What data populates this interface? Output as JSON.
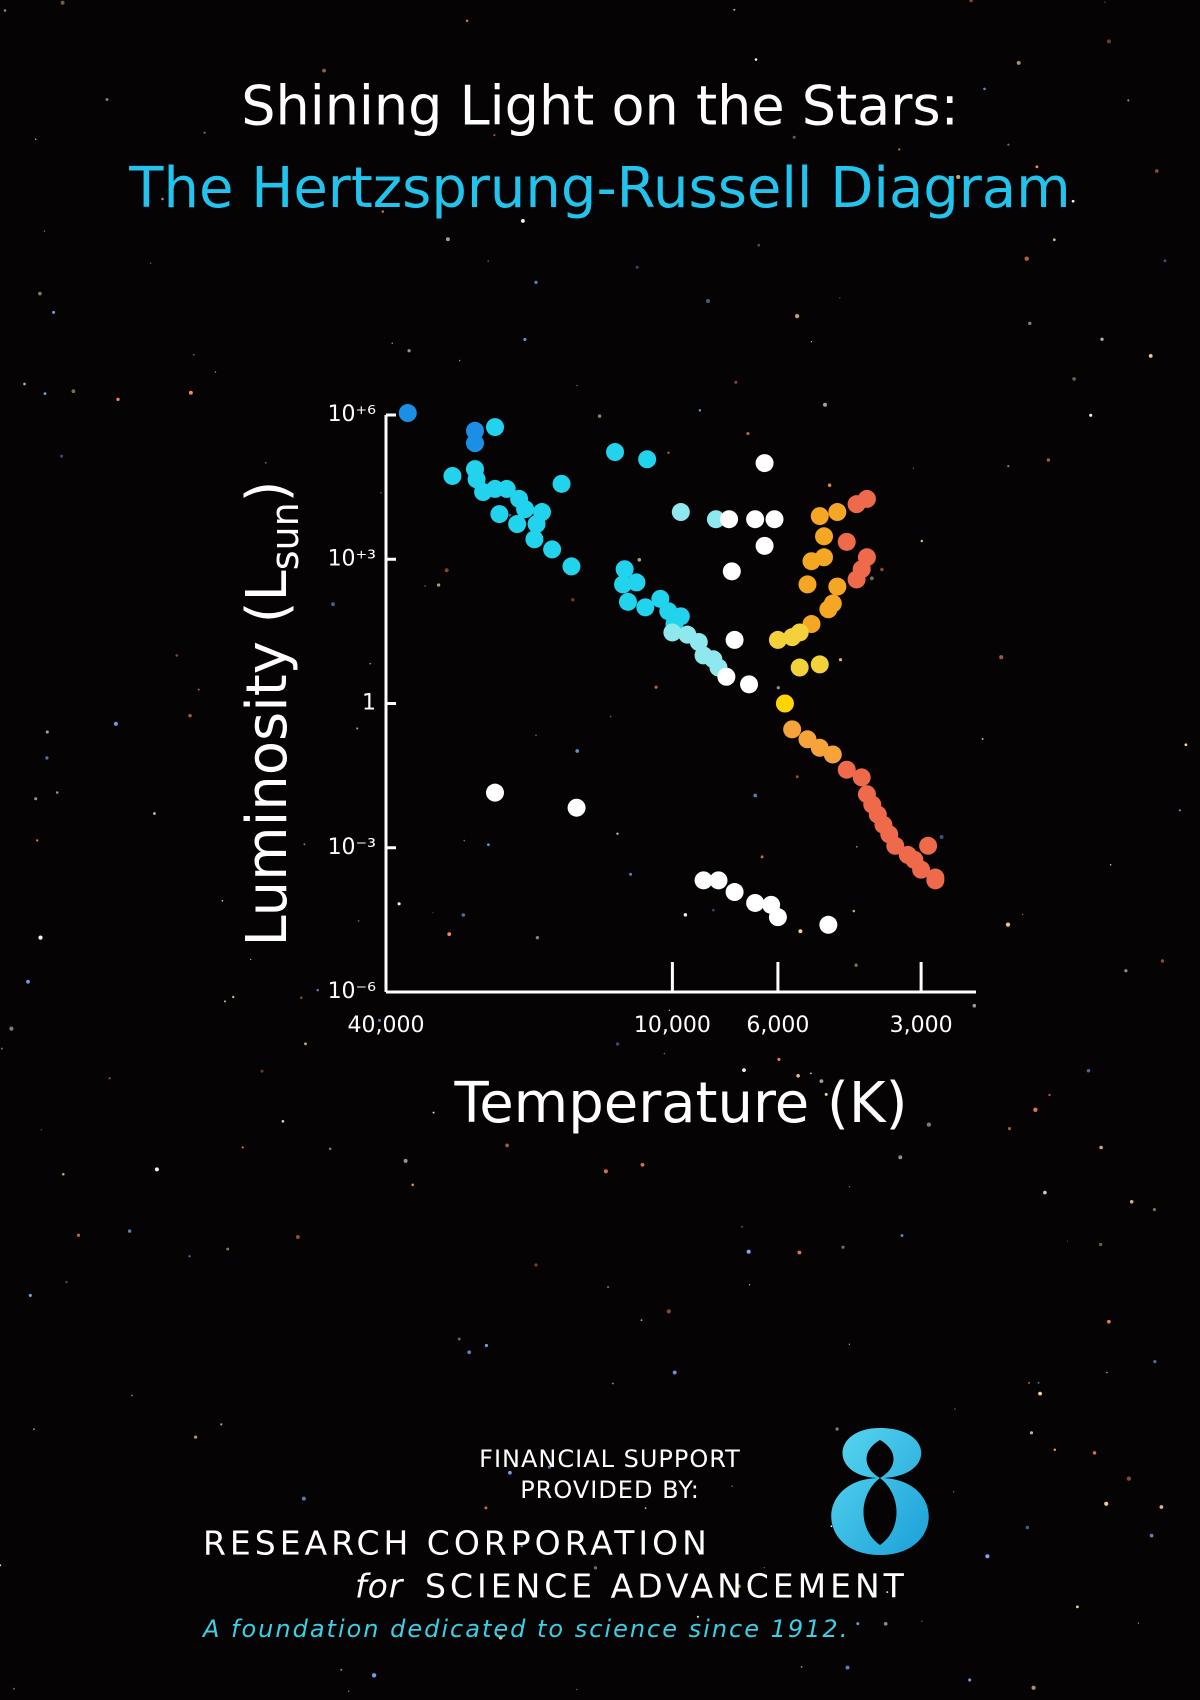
{
  "title": "Shining Light on the Stars:",
  "subtitle": "The Hertzsprung-Russell Diagram",
  "chart_data": {
    "type": "scatter",
    "x_label": "Temperature (K)",
    "y_label": "Luminosity (L",
    "y_label_subscript": "sun",
    "y_label_end": ")",
    "x_log": true,
    "y_log": true,
    "xlim": [
      40000,
      2300
    ],
    "ylim": [
      1e-06,
      1000000
    ],
    "xticks": [
      {
        "value": 40000,
        "label": "40,000"
      },
      {
        "value": 10000,
        "label": "10,000"
      },
      {
        "value": 6000,
        "label": "6,000"
      },
      {
        "value": 3000,
        "label": "3,000"
      }
    ],
    "yticks": [
      {
        "value": 1e-06,
        "label": "10⁻⁶"
      },
      {
        "value": 0.001,
        "label": "10⁻³"
      },
      1,
      {
        "value": 1000,
        "label": "10⁺³"
      },
      {
        "value": 1000000,
        "label": "10⁺⁶"
      }
    ],
    "series": [
      {
        "color": "#1b8fe6",
        "x": [
          36000,
          26000,
          26000
        ],
        "values": [
          1100000,
          470000,
          260000
        ]
      },
      {
        "color": "#22d3ee",
        "x": [
          29000,
          26000,
          25800,
          25000,
          23600,
          22300,
          21000,
          20400,
          18800,
          19300,
          21200,
          23100,
          19500,
          17900,
          17100,
          16300,
          23600,
          13200,
          11300,
          12600,
          12700,
          11900,
          12400,
          11400,
          10600,
          10200,
          9900,
          9600
        ],
        "values": [
          54000,
          75000,
          46000,
          25000,
          29000,
          29000,
          18000,
          11000,
          9600,
          5400,
          5400,
          8700,
          2600,
          1600,
          37000,
          710,
          560000,
          170000,
          120000,
          620,
          300,
          330,
          130,
          100,
          150,
          83,
          45,
          65
        ]
      },
      {
        "color": "#8ee8ee",
        "x": [
          9600,
          8100,
          10000,
          9300,
          8800,
          8600,
          8200,
          8000
        ],
        "values": [
          9600,
          6800,
          30,
          27,
          19,
          10,
          8.3,
          5.6
        ]
      },
      {
        "color": "#ffffff",
        "x": [
          6400,
          7600,
          6700,
          6100,
          6400,
          7500,
          7400,
          7700,
          6900,
          23600,
          15900,
          8600,
          8000,
          7400,
          6700,
          6200,
          6000,
          4700
        ],
        "values": [
          100000,
          6800,
          6800,
          6800,
          1900,
          560,
          21,
          3.6,
          2.5,
          0.014,
          0.0068,
          0.00021,
          0.00021,
          0.00012,
          7.1e-05,
          6.5e-05,
          3.6e-05,
          2.5e-05
        ]
      },
      {
        "color": "#f5a623",
        "x": [
          4900,
          4500,
          4800,
          5100,
          4800,
          5200,
          4500,
          4700,
          4600,
          5100
        ],
        "values": [
          7900,
          9600,
          3000,
          910,
          1100,
          300,
          270,
          91,
          120,
          45
        ]
      },
      {
        "color": "#f2d13a",
        "x": [
          6000,
          5600,
          5400,
          5400,
          4900
        ],
        "values": [
          21,
          24,
          30,
          5.6,
          6.5
        ]
      },
      {
        "color": "#ef6a4a",
        "x": [
          4100,
          3900,
          4300,
          3900,
          4000,
          4100
        ],
        "values": [
          14000,
          18000,
          2300,
          1100,
          620,
          380
        ]
      },
      {
        "color": "#ffd400",
        "x": [
          5800
        ],
        "values": [
          1
        ]
      },
      {
        "color": "#f6a33c",
        "x": [
          5600,
          5200,
          4900,
          4600
        ],
        "values": [
          0.29,
          0.18,
          0.12,
          0.087
        ]
      },
      {
        "color": "#ef6a4a",
        "x": [
          4300,
          4000,
          3900,
          3800,
          3700,
          3600,
          3500,
          3400,
          3200,
          3100,
          3000,
          2800,
          2900,
          2800
        ],
        "values": [
          0.042,
          0.029,
          0.013,
          0.0079,
          0.0049,
          0.003,
          0.0019,
          0.0011,
          0.00071,
          0.00056,
          0.00035,
          0.00024,
          0.0011,
          0.00021
        ]
      }
    ]
  },
  "footer": {
    "line1": "FINANCIAL SUPPORT",
    "line2": "PROVIDED BY:",
    "org1": "RESEARCH CORPORATION",
    "org2_italic": "for",
    "org2": "SCIENCE ADVANCEMENT",
    "tagline": "A foundation dedicated to science since 1912."
  }
}
